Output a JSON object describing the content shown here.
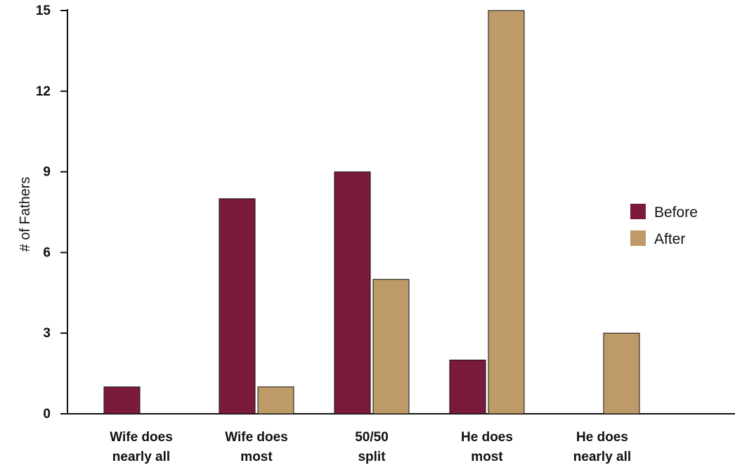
{
  "chart_data": {
    "type": "bar",
    "categories": [
      [
        "Wife does",
        "nearly all"
      ],
      [
        "Wife does",
        "most"
      ],
      [
        "50/50",
        "split"
      ],
      [
        "He does",
        "most"
      ],
      [
        "He does",
        "nearly all"
      ]
    ],
    "series": [
      {
        "name": "Before",
        "color": "#7b1a3c",
        "values": [
          1,
          8,
          9,
          2,
          0
        ]
      },
      {
        "name": "After",
        "color": "#bd9a67",
        "values": [
          0,
          1,
          5,
          15,
          3
        ]
      }
    ],
    "title": "",
    "xlabel": "",
    "ylabel": "# of Fathers",
    "ylim": [
      0,
      15
    ],
    "yticks": [
      0,
      3,
      6,
      9,
      12,
      15
    ],
    "grid": false,
    "legend": "right"
  }
}
